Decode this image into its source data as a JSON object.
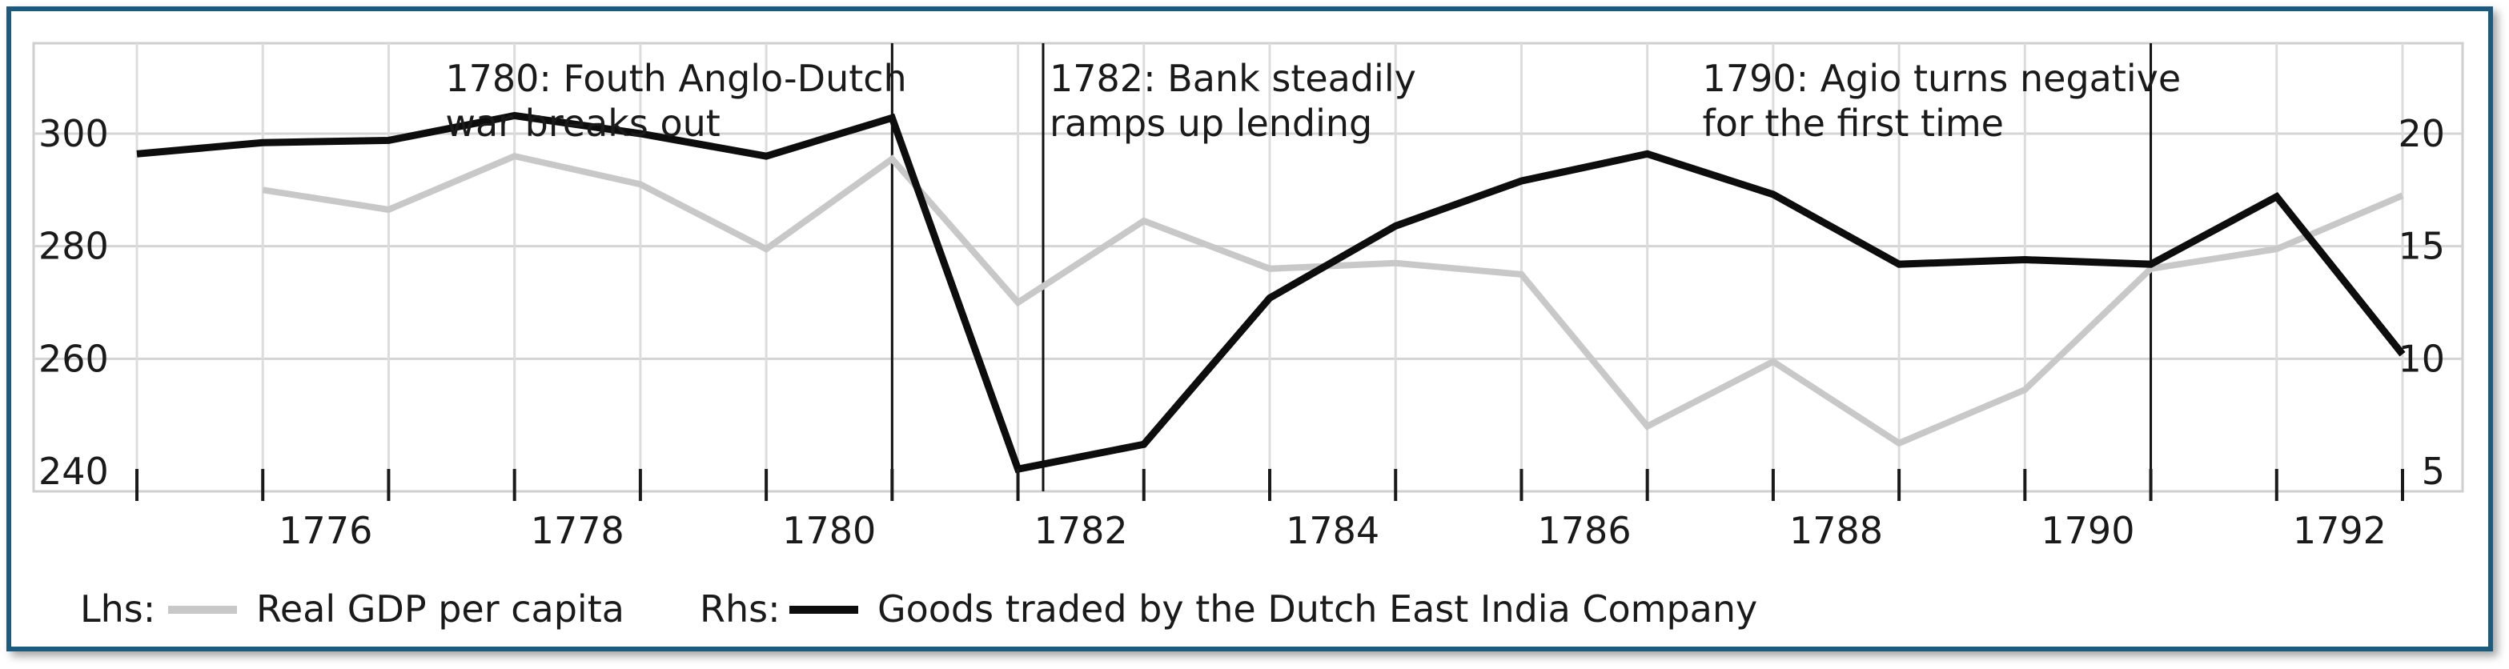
{
  "chart_data": {
    "type": "line",
    "x": [
      1774.5,
      1775.5,
      1776.5,
      1777.5,
      1778.5,
      1779.5,
      1780.5,
      1781.5,
      1782.5,
      1783.5,
      1784.5,
      1785.5,
      1786.5,
      1787.5,
      1788.5,
      1789.5,
      1790.5,
      1791.5,
      1792.5
    ],
    "x_ticks": [
      "1776",
      "1778",
      "1780",
      "1782",
      "1784",
      "1786",
      "1788",
      "1790",
      "1792"
    ],
    "y_left": {
      "ylim": [
        240,
        300
      ],
      "ticks": [
        "240",
        "260",
        "280",
        "300"
      ]
    },
    "y_right": {
      "ylim": [
        5,
        20
      ],
      "ticks": [
        "5",
        "10",
        "15",
        "20"
      ]
    },
    "series": [
      {
        "name": "Real GDP per capita",
        "axis": "left",
        "color": "#c8c8c8",
        "x": [
          1775.5,
          1776.5,
          1777.5,
          1778.5,
          1779.5,
          1780.5,
          1781.5,
          1782.5,
          1783.5,
          1784.5,
          1785.5,
          1786.5,
          1787.5,
          1788.5,
          1789.5,
          1790.5,
          1791.5,
          1792.5
        ],
        "values": [
          290,
          286.5,
          296,
          291,
          279.5,
          295.5,
          270,
          284.5,
          276,
          277,
          275,
          248,
          259.5,
          245,
          254.5,
          276,
          279.5,
          289
        ]
      },
      {
        "name": "Goods traded by the Dutch East India Company",
        "axis": "right",
        "color": "#0d0d0d",
        "x": [
          1774.5,
          1775.5,
          1776.5,
          1777.5,
          1778.5,
          1779.5,
          1780.5,
          1781.5,
          1782.5,
          1783.5,
          1784.5,
          1785.5,
          1786.5,
          1787.5,
          1788.5,
          1789.5,
          1790.5,
          1791.5,
          1792.5
        ],
        "values": [
          19.1,
          19.6,
          19.7,
          20.8,
          20.0,
          19.0,
          20.7,
          5.1,
          6.2,
          12.7,
          15.9,
          17.9,
          19.1,
          17.3,
          14.2,
          14.4,
          14.2,
          17.2,
          10.2
        ]
      }
    ],
    "annotations": [
      {
        "x": 1780.5,
        "lines": [
          "1780: Fouth Anglo-Dutch",
          "war breaks out"
        ]
      },
      {
        "x": 1781.7,
        "lines": [
          "1782: Bank steadily",
          "ramps up lending"
        ]
      },
      {
        "x": 1790.5,
        "lines": [
          "1790: Agio turns negative",
          "for the first time"
        ]
      }
    ],
    "legend": {
      "position": "bottom",
      "lhs_label": "Lhs:",
      "rhs_label": "Rhs:",
      "lhs_series": "Real GDP per capita",
      "rhs_series": "Goods traded by the Dutch East India Company"
    },
    "grid": true
  }
}
